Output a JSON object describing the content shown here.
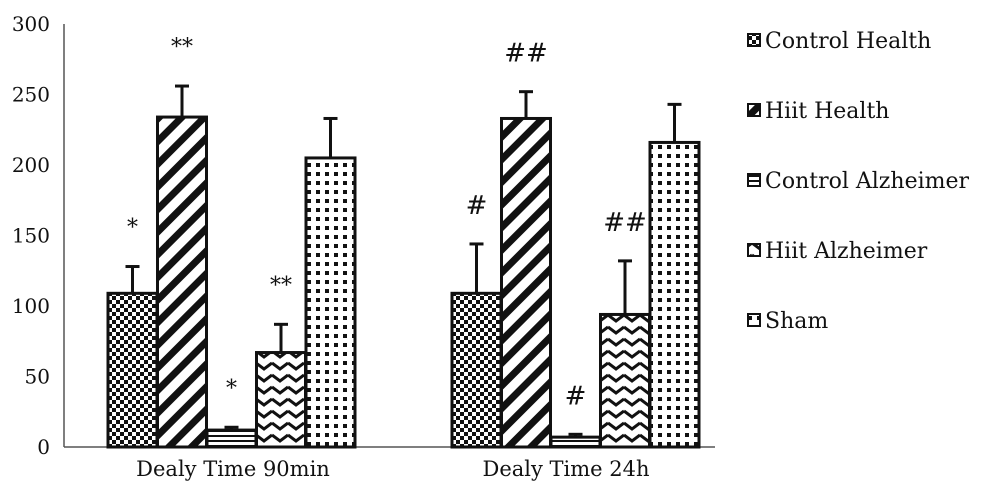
{
  "chart_data": {
    "type": "bar",
    "title": "",
    "xlabel": "",
    "ylabel": "",
    "ylim": [
      0,
      300
    ],
    "yticks": [
      0,
      50,
      100,
      150,
      200,
      250,
      300
    ],
    "categories": [
      "Dealy Time 90min",
      "Dealy Time 24h"
    ],
    "legend_position": "right",
    "grid": false,
    "series": [
      {
        "name": "Control Health",
        "pattern": "checker",
        "values": [
          109,
          109
        ],
        "errors": [
          19,
          35
        ],
        "annotations": [
          "*",
          "#"
        ]
      },
      {
        "name": "Hiit Health",
        "pattern": "diagonal",
        "values": [
          234,
          233
        ],
        "errors": [
          22,
          19
        ],
        "annotations": [
          "**",
          "##"
        ]
      },
      {
        "name": "Control Alzheimer",
        "pattern": "stripes",
        "values": [
          12,
          7
        ],
        "errors": [
          2,
          2
        ],
        "annotations": [
          "*",
          "#"
        ]
      },
      {
        "name": "Hiit Alzheimer",
        "pattern": "zigzag",
        "values": [
          67,
          94
        ],
        "errors": [
          20,
          38
        ],
        "annotations": [
          "**",
          "##"
        ]
      },
      {
        "name": "Sham",
        "pattern": "dots",
        "values": [
          205,
          216
        ],
        "errors": [
          28,
          27
        ],
        "annotations": [
          "",
          ""
        ]
      }
    ]
  }
}
